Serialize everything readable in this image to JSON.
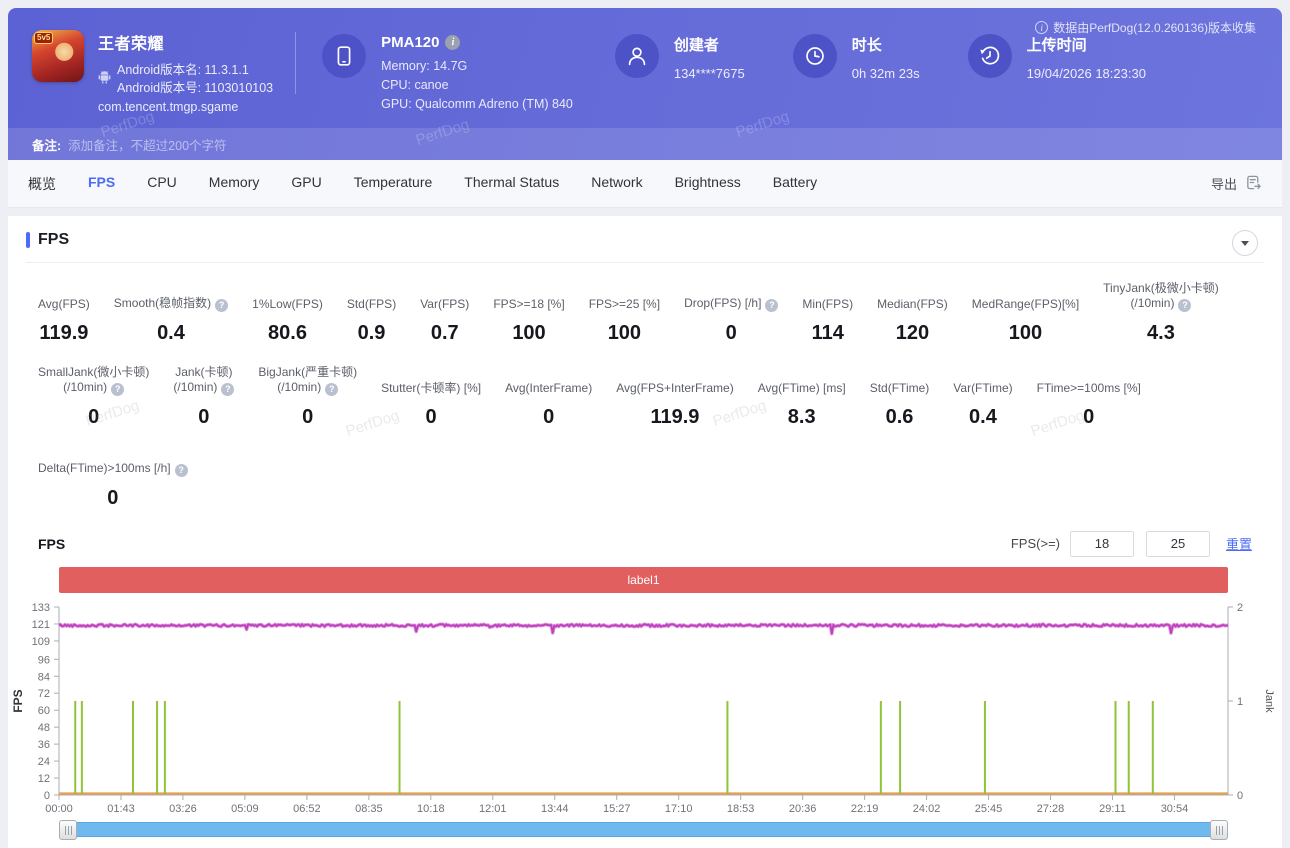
{
  "watermark": "PerfDog",
  "header": {
    "app": {
      "badge": "5v5",
      "title": "王者荣耀",
      "version_name_line": "Android版本名: 11.3.1.1",
      "version_code_line": "Android版本号: 1103010103",
      "package": "com.tencent.tmgp.sgame"
    },
    "device": {
      "name": "PMA120",
      "memory_line": "Memory: 14.7G",
      "cpu_line": "CPU: canoe",
      "gpu_line": "GPU: Qualcomm Adreno (TM) 840"
    },
    "creator": {
      "label": "创建者",
      "value": "134****7675"
    },
    "duration": {
      "label": "时长",
      "value": "0h 32m 23s"
    },
    "upload": {
      "label": "上传时间",
      "value": "19/04/2026 18:23:30"
    },
    "source_note": "数据由PerfDog(12.0.260136)版本收集"
  },
  "note_bar": {
    "label": "备注:",
    "placeholder": "添加备注，不超过200个字符"
  },
  "tabs": {
    "items": [
      "概览",
      "FPS",
      "CPU",
      "Memory",
      "GPU",
      "Temperature",
      "Thermal Status",
      "Network",
      "Brightness",
      "Battery"
    ],
    "active": "FPS",
    "export_label": "导出"
  },
  "fps_section": {
    "title": "FPS",
    "stats_row1": [
      {
        "label": "Avg(FPS)",
        "value": "119.9"
      },
      {
        "label": "Smooth(稳帧指数)",
        "help": true,
        "value": "0.4"
      },
      {
        "label": "1%Low(FPS)",
        "value": "80.6"
      },
      {
        "label": "Std(FPS)",
        "value": "0.9"
      },
      {
        "label": "Var(FPS)",
        "value": "0.7"
      },
      {
        "label": "FPS>=18 [%]",
        "value": "100"
      },
      {
        "label": "FPS>=25 [%]",
        "value": "100"
      },
      {
        "label": "Drop(FPS) [/h]",
        "help": true,
        "value": "0"
      },
      {
        "label": "Min(FPS)",
        "value": "114"
      },
      {
        "label": "Median(FPS)",
        "value": "120"
      },
      {
        "label": "MedRange(FPS)[%]",
        "value": "100"
      },
      {
        "label": "TinyJank(极微小卡顿)\n(/10min)",
        "help": true,
        "value": "4.3"
      }
    ],
    "stats_row2": [
      {
        "label": "SmallJank(微小卡顿)\n(/10min)",
        "help": true,
        "value": "0"
      },
      {
        "label": "Jank(卡顿)\n(/10min)",
        "help": true,
        "value": "0"
      },
      {
        "label": "BigJank(严重卡顿)\n(/10min)",
        "help": true,
        "value": "0"
      },
      {
        "label": "Stutter(卡顿率) [%]",
        "value": "0"
      },
      {
        "label": "Avg(InterFrame)",
        "value": "0"
      },
      {
        "label": "Avg(FPS+InterFrame)",
        "value": "119.9"
      },
      {
        "label": "Avg(FTime) [ms]",
        "value": "8.3"
      },
      {
        "label": "Std(FTime)",
        "value": "0.6"
      },
      {
        "label": "Var(FTime)",
        "value": "0.4"
      },
      {
        "label": "FTime>=100ms [%]",
        "value": "0"
      }
    ],
    "stats_row3": [
      {
        "label": "Delta(FTime)>100ms [/h]",
        "help": true,
        "value": "0"
      }
    ]
  },
  "chart_controls": {
    "title": "FPS",
    "filter_label": "FPS(>=)",
    "threshold1": "18",
    "threshold2": "25",
    "reset_label": "重置"
  },
  "chart_data": {
    "type": "line",
    "title": "FPS",
    "region_label": "label1",
    "grid": false,
    "legend_position": "none",
    "x_axis": {
      "tick_labels": [
        "00:00",
        "01:43",
        "03:26",
        "05:09",
        "06:52",
        "08:35",
        "10:18",
        "12:01",
        "13:44",
        "15:27",
        "17:10",
        "18:53",
        "20:36",
        "22:19",
        "24:02",
        "25:45",
        "27:28",
        "29:11",
        "30:54"
      ],
      "tick_interval_seconds": 103,
      "total_seconds": 1943
    },
    "y_axis_left": {
      "label": "FPS",
      "ticks": [
        0,
        12,
        24,
        36,
        48,
        60,
        72,
        84,
        96,
        109,
        121,
        133
      ],
      "min": 0,
      "max": 133
    },
    "y_axis_right": {
      "label": "Jank",
      "ticks": [
        0,
        1,
        2
      ],
      "min": 0,
      "max": 2
    },
    "series": [
      {
        "name": "FPS",
        "axis": "left",
        "color": "#bf3fbf",
        "style": "noisy-line",
        "approx_base": 120,
        "avg": 119.9,
        "min": 114,
        "median": 120
      },
      {
        "name": "Jank",
        "axis": "right",
        "color": "#8fc43a",
        "style": "event-spike",
        "spike_value": 1,
        "event_times": [
          "00:27",
          "00:38",
          "02:03",
          "02:43",
          "02:56",
          "09:26",
          "18:31",
          "22:46",
          "23:18",
          "25:39",
          "29:16",
          "29:38",
          "30:18"
        ]
      },
      {
        "name": "baseline",
        "axis": "right",
        "color": "#e2a051",
        "style": "flat-line",
        "value": 0
      }
    ]
  }
}
